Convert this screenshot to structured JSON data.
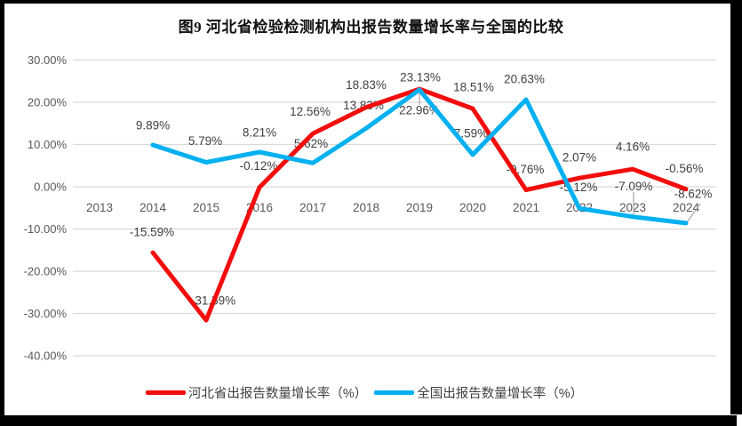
{
  "title": "图9 河北省检验检测机构出报告数量增长率与全国的比较",
  "chart_data": {
    "type": "line",
    "title": "图9 河北省检验检测机构出报告数量增长率与全国的比较",
    "categories": [
      "2013",
      "2014",
      "2015",
      "2016",
      "2017",
      "2018",
      "2019",
      "2020",
      "2021",
      "2022",
      "2023",
      "2024"
    ],
    "y_axis": {
      "tick_labels": [
        "30.00%",
        "20.00%",
        "10.00%",
        "0.00%",
        "-10.00%",
        "-20.00%",
        "-30.00%",
        "-40.00%"
      ],
      "tick_values": [
        30,
        20,
        10,
        0,
        -10,
        -20,
        -30,
        -40
      ],
      "min": -40,
      "max": 30,
      "format": "percent"
    },
    "grid": true,
    "legend_position": "bottom",
    "series": [
      {
        "name": "河北省出报告数量增长率（%）",
        "color": "#f20d0d",
        "values": [
          null,
          -15.59,
          -31.59,
          -0.12,
          12.56,
          18.83,
          23.13,
          18.51,
          -0.76,
          2.07,
          4.16,
          -0.56
        ],
        "labels": [
          null,
          "-15.59%",
          "-31.59%",
          "-0.12%",
          "12.56%",
          "18.83%",
          "23.13%",
          "18.51%",
          "-0.76%",
          "2.07%",
          "4.16%",
          "-0.56%"
        ]
      },
      {
        "name": "全国出报告数量增长率（%）",
        "color": "#00b0f0",
        "values": [
          null,
          9.89,
          5.79,
          8.21,
          5.62,
          13.83,
          22.96,
          7.59,
          20.63,
          -5.12,
          -7.09,
          -8.62
        ],
        "labels": [
          null,
          "9.89%",
          "5.79%",
          "8.21%",
          "5.62%",
          "13.83%",
          "22.96%",
          "7.59%",
          "20.63%",
          "-5.12%",
          "-7.09%",
          "-8.62%"
        ]
      }
    ],
    "colors": {
      "grid_line": "#d9d9d9",
      "axis_text": "#595959",
      "data_label_text": "#404040",
      "leader_line": "#a6a6a6",
      "frame": "#000000"
    }
  }
}
